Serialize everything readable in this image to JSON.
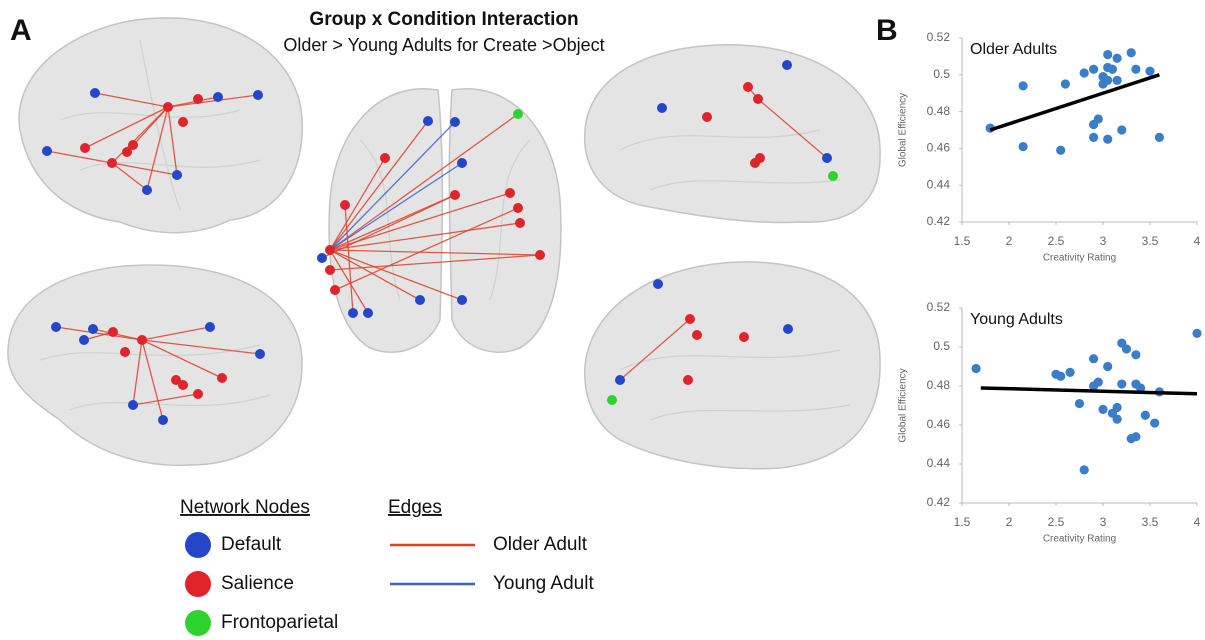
{
  "panel_a": {
    "label": "A",
    "title": "Group x Condition Interaction",
    "subtitle": "Older > Young Adults for Create >Object",
    "nodes_legend": {
      "title": "Network Nodes",
      "items": [
        {
          "name": "Default",
          "color": "#2347c8"
        },
        {
          "name": "Salience",
          "color": "#e0242a"
        },
        {
          "name": "Frontoparietal",
          "color": "#2ed32e"
        }
      ]
    },
    "edges_legend": {
      "title": "Edges",
      "items": [
        {
          "name": "Older Adult",
          "color": "#e0402a"
        },
        {
          "name": "Young Adult",
          "color": "#3a5fc8"
        }
      ]
    }
  },
  "panel_b": {
    "label": "B"
  },
  "chart_data": [
    {
      "type": "scatter",
      "title": "Older Adults",
      "x_label": "Creativity Rating",
      "y_label": "Global Efficiency",
      "color": "#3a7dc9",
      "x": [
        1.8,
        2.15,
        2.15,
        2.55,
        2.6,
        2.8,
        2.9,
        2.95,
        2.9,
        2.9,
        3.0,
        3.0,
        3.05,
        3.05,
        3.05,
        3.1,
        3.15,
        3.15,
        3.2,
        3.3,
        3.35,
        3.5,
        3.6,
        3.05
      ],
      "values": [
        0.471,
        0.494,
        0.461,
        0.459,
        0.495,
        0.501,
        0.503,
        0.476,
        0.473,
        0.466,
        0.499,
        0.495,
        0.511,
        0.504,
        0.497,
        0.503,
        0.509,
        0.497,
        0.47,
        0.512,
        0.503,
        0.502,
        0.466,
        0.465
      ],
      "trendline": {
        "color": "#000000",
        "x": [
          1.8,
          3.6
        ],
        "values": [
          0.47,
          0.5
        ]
      },
      "xlim": [
        1.5,
        4
      ],
      "ylim": [
        0.42,
        0.52
      ],
      "xticks": [
        1.5,
        2,
        2.5,
        3,
        3.5,
        4
      ],
      "yticks": [
        0.42,
        0.44,
        0.46,
        0.48,
        0.5,
        0.52
      ]
    },
    {
      "type": "scatter",
      "title": "Young Adults",
      "x_label": "Creativity Rating",
      "y_label": "Global Efficiency",
      "color": "#3a7dc9",
      "x": [
        1.65,
        2.5,
        2.55,
        2.65,
        2.75,
        2.8,
        2.9,
        2.9,
        2.95,
        3.0,
        3.05,
        3.1,
        3.15,
        3.15,
        3.2,
        3.2,
        3.25,
        3.3,
        3.35,
        3.35,
        3.35,
        3.4,
        3.45,
        3.55,
        3.6,
        4.0
      ],
      "values": [
        0.489,
        0.486,
        0.485,
        0.487,
        0.471,
        0.437,
        0.48,
        0.494,
        0.482,
        0.468,
        0.49,
        0.466,
        0.463,
        0.469,
        0.502,
        0.481,
        0.499,
        0.453,
        0.454,
        0.496,
        0.481,
        0.479,
        0.465,
        0.461,
        0.477,
        0.507
      ],
      "trendline": {
        "color": "#000000",
        "x": [
          1.7,
          4.0
        ],
        "values": [
          0.479,
          0.476
        ]
      },
      "xlim": [
        1.5,
        4
      ],
      "ylim": [
        0.42,
        0.52
      ],
      "xticks": [
        1.5,
        2,
        2.5,
        3,
        3.5,
        4
      ],
      "yticks": [
        0.42,
        0.44,
        0.46,
        0.48,
        0.5,
        0.52
      ]
    }
  ]
}
